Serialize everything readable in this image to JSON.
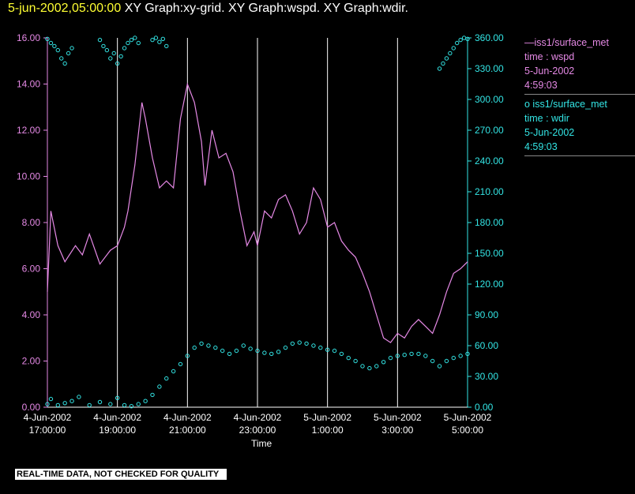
{
  "header": {
    "timestamp": "5-jun-2002,05:00:00",
    "graphs": "XY Graph:xy-grid.  XY Graph:wspd.  XY Graph:wdir."
  },
  "legend": {
    "wspd": {
      "line": "—iss1/surface_met",
      "field": "time : wspd",
      "date": "5-Jun-2002",
      "time": "4:59:03"
    },
    "wdir": {
      "line": "o  iss1/surface_met",
      "field": "time : wdir",
      "date": "5-Jun-2002",
      "time": "4:59:03"
    }
  },
  "footer": {
    "warning": "REAL-TIME DATA, NOT CHECKED FOR QUALITY"
  },
  "colors": {
    "wspd": "#e589e5",
    "wdir": "#33e5e5",
    "grid": "#ffffff",
    "axis_text": "#ffffff"
  },
  "chart_data": {
    "type": "line",
    "xlabel": "Time",
    "x_tick_labels": [
      [
        "4-Jun-2002",
        "17:00:00"
      ],
      [
        "4-Jun-2002",
        "19:00:00"
      ],
      [
        "4-Jun-2002",
        "21:00:00"
      ],
      [
        "4-Jun-2002",
        "23:00:00"
      ],
      [
        "5-Jun-2002",
        "1:00:00"
      ],
      [
        "5-Jun-2002",
        "3:00:00"
      ],
      [
        "5-Jun-2002",
        "5:00:00"
      ]
    ],
    "x_hours_range": [
      0,
      12
    ],
    "y_left": {
      "ticks": [
        "0.00",
        "2.00",
        "4.00",
        "6.00",
        "8.00",
        "10.00",
        "12.00",
        "14.00",
        "16.00"
      ],
      "range": [
        0,
        16
      ]
    },
    "y_right": {
      "ticks": [
        "0.00",
        "30.00",
        "60.00",
        "90.00",
        "120.00",
        "150.00",
        "180.00",
        "210.00",
        "240.00",
        "270.00",
        "300.00",
        "330.00",
        "360.00"
      ],
      "range": [
        0,
        360
      ]
    },
    "grid_vertical": true,
    "series": [
      {
        "key": "wspd",
        "style": "line",
        "axis": "left",
        "x": [
          0,
          0.1,
          0.3,
          0.5,
          0.8,
          1.0,
          1.2,
          1.5,
          1.8,
          2.0,
          2.2,
          2.3,
          2.5,
          2.7,
          2.8,
          3.0,
          3.2,
          3.4,
          3.6,
          3.8,
          4.0,
          4.2,
          4.4,
          4.5,
          4.7,
          4.9,
          5.1,
          5.3,
          5.5,
          5.7,
          5.9,
          6.0,
          6.2,
          6.4,
          6.6,
          6.8,
          7.0,
          7.2,
          7.4,
          7.6,
          7.8,
          8.0,
          8.2,
          8.4,
          8.6,
          8.8,
          9.0,
          9.2,
          9.4,
          9.6,
          9.8,
          10.0,
          10.2,
          10.4,
          10.6,
          10.8,
          11.0,
          11.2,
          11.4,
          11.6,
          11.8,
          12.0
        ],
        "values": [
          5.0,
          8.5,
          7.0,
          6.3,
          7.0,
          6.6,
          7.5,
          6.2,
          6.8,
          7.0,
          7.8,
          8.5,
          10.5,
          13.2,
          12.5,
          10.8,
          9.5,
          9.8,
          9.5,
          12.5,
          14.0,
          13.2,
          11.5,
          9.6,
          12.0,
          10.8,
          11.0,
          10.2,
          8.5,
          7.0,
          7.6,
          7.0,
          8.5,
          8.2,
          9.0,
          9.2,
          8.5,
          7.5,
          8.0,
          9.5,
          9.0,
          7.8,
          8.0,
          7.2,
          6.8,
          6.5,
          5.8,
          5.0,
          4.0,
          3.0,
          2.8,
          3.2,
          3.0,
          3.5,
          3.8,
          3.5,
          3.2,
          4.0,
          5.0,
          5.8,
          6.0,
          6.3
        ]
      },
      {
        "key": "wdir",
        "style": "points",
        "axis": "right",
        "x": [
          0,
          0.1,
          0.3,
          0.5,
          0.7,
          0.9,
          1.2,
          1.5,
          1.8,
          2.0,
          2.2,
          2.4,
          2.6,
          2.8,
          3.0,
          3.2,
          3.4,
          3.6,
          3.8,
          4.0,
          4.2,
          4.4,
          4.6,
          4.8,
          5.0,
          5.2,
          5.4,
          5.6,
          5.8,
          6.0,
          6.2,
          6.4,
          6.6,
          6.8,
          7.0,
          7.2,
          7.4,
          7.6,
          7.8,
          8.0,
          8.2,
          8.4,
          8.6,
          8.8,
          9.0,
          9.2,
          9.4,
          9.6,
          9.8,
          10.0,
          10.2,
          10.4,
          10.6,
          10.8,
          11.0,
          11.2,
          11.4,
          11.6,
          11.8,
          12.0
        ],
        "values": [
          3,
          8,
          2,
          4,
          6,
          10,
          2,
          5,
          3,
          9,
          2,
          1,
          3,
          6,
          12,
          20,
          28,
          35,
          42,
          50,
          58,
          62,
          60,
          58,
          55,
          52,
          55,
          60,
          57,
          55,
          53,
          52,
          54,
          58,
          62,
          63,
          62,
          60,
          58,
          56,
          55,
          52,
          48,
          45,
          40,
          38,
          40,
          44,
          48,
          50,
          51,
          52,
          52,
          50,
          45,
          40,
          45,
          48,
          50,
          52
        ]
      },
      {
        "key": "wdir_high",
        "style": "points",
        "axis": "right",
        "x": [
          0,
          0.1,
          0.2,
          0.3,
          0.4,
          0.5,
          0.6,
          0.7,
          1.5,
          1.6,
          1.7,
          1.8,
          1.9,
          2.0,
          2.1,
          2.2,
          2.3,
          2.4,
          2.5,
          2.6,
          3.0,
          3.1,
          3.2,
          3.3,
          3.4,
          11.2,
          11.3,
          11.4,
          11.5,
          11.6,
          11.7,
          11.8,
          11.9,
          12.0
        ],
        "values": [
          359,
          355,
          352,
          348,
          340,
          335,
          345,
          350,
          358,
          352,
          348,
          340,
          345,
          335,
          342,
          350,
          355,
          358,
          360,
          355,
          358,
          360,
          356,
          359,
          352,
          330,
          335,
          340,
          345,
          350,
          355,
          358,
          360,
          359
        ]
      }
    ]
  }
}
